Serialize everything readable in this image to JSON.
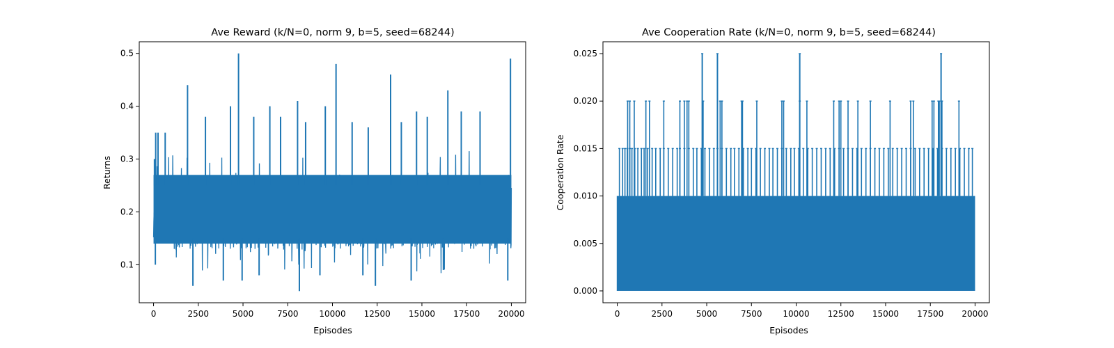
{
  "chart_data": [
    {
      "type": "line",
      "title": "Ave Reward (k/N=0, norm 9, b=5, seed=68244)",
      "xlabel": "Episodes",
      "ylabel": "Returns",
      "xlim": [
        -800,
        20800
      ],
      "ylim": [
        0.028,
        0.522
      ],
      "xticks": [
        0,
        2500,
        5000,
        7500,
        10000,
        12500,
        15000,
        17500,
        20000
      ],
      "yticks": [
        0.1,
        0.2,
        0.3,
        0.4,
        0.5
      ],
      "ytick_labels": [
        "0.1",
        "0.2",
        "0.3",
        "0.4",
        "0.5"
      ],
      "series_color": "#1f77b4",
      "band": {
        "x_start": 0,
        "x_end": 20000,
        "typical_low": 0.13,
        "typical_high": 0.27
      },
      "spikes": [
        {
          "x": 50,
          "y": 0.3
        },
        {
          "x": 120,
          "y": 0.35
        },
        {
          "x": 250,
          "y": 0.35
        },
        {
          "x": 650,
          "y": 0.35
        },
        {
          "x": 1900,
          "y": 0.44
        },
        {
          "x": 2900,
          "y": 0.38
        },
        {
          "x": 4300,
          "y": 0.4
        },
        {
          "x": 4750,
          "y": 0.5
        },
        {
          "x": 5600,
          "y": 0.38
        },
        {
          "x": 6500,
          "y": 0.4
        },
        {
          "x": 7100,
          "y": 0.38
        },
        {
          "x": 8050,
          "y": 0.41
        },
        {
          "x": 8500,
          "y": 0.37
        },
        {
          "x": 9600,
          "y": 0.4
        },
        {
          "x": 10200,
          "y": 0.48
        },
        {
          "x": 11100,
          "y": 0.37
        },
        {
          "x": 12000,
          "y": 0.36
        },
        {
          "x": 13250,
          "y": 0.46
        },
        {
          "x": 13850,
          "y": 0.37
        },
        {
          "x": 14700,
          "y": 0.39
        },
        {
          "x": 15300,
          "y": 0.38
        },
        {
          "x": 16450,
          "y": 0.43
        },
        {
          "x": 17200,
          "y": 0.39
        },
        {
          "x": 18250,
          "y": 0.39
        },
        {
          "x": 19950,
          "y": 0.49
        }
      ],
      "dips": [
        {
          "x": 100,
          "y": 0.1
        },
        {
          "x": 2200,
          "y": 0.06
        },
        {
          "x": 3900,
          "y": 0.07
        },
        {
          "x": 4950,
          "y": 0.07
        },
        {
          "x": 5900,
          "y": 0.08
        },
        {
          "x": 8150,
          "y": 0.05
        },
        {
          "x": 9300,
          "y": 0.08
        },
        {
          "x": 11700,
          "y": 0.08
        },
        {
          "x": 12400,
          "y": 0.06
        },
        {
          "x": 14400,
          "y": 0.07
        },
        {
          "x": 16200,
          "y": 0.09
        },
        {
          "x": 19800,
          "y": 0.07
        }
      ]
    },
    {
      "type": "line",
      "title": "Ave Cooperation Rate (k/N=0, norm 9, b=5, seed=68244)",
      "xlabel": "Episodes",
      "ylabel": "Cooperation Rate",
      "xlim": [
        -800,
        20800
      ],
      "ylim": [
        -0.00125,
        0.02625
      ],
      "xticks": [
        0,
        2500,
        5000,
        7500,
        10000,
        12500,
        15000,
        17500,
        20000
      ],
      "yticks": [
        0.0,
        0.005,
        0.01,
        0.015,
        0.02,
        0.025
      ],
      "ytick_labels": [
        "0.000",
        "0.005",
        "0.010",
        "0.015",
        "0.020",
        "0.025"
      ],
      "series_color": "#1f77b4",
      "band": {
        "x_start": 0,
        "x_end": 20000,
        "low": 0.0,
        "high": 0.01
      },
      "level_015_x": [
        120,
        300,
        430,
        560,
        700,
        820,
        980,
        1150,
        1350,
        1500,
        1700,
        1950,
        2150,
        2400,
        2600,
        2850,
        3100,
        3350,
        3500,
        3750,
        4000,
        4250,
        4450,
        4700,
        4900,
        5150,
        5400,
        5600,
        5850,
        6100,
        6350,
        6550,
        6800,
        7050,
        7300,
        7500,
        7750,
        8000,
        8250,
        8500,
        8700,
        8950,
        9200,
        9450,
        9700,
        9900,
        10150,
        10400,
        10650,
        10900,
        11150,
        11400,
        11650,
        11900,
        12150,
        12400,
        12650,
        12900,
        13150,
        13400,
        13650,
        13900,
        14150,
        14400,
        14650,
        14900,
        15150,
        15400,
        15650,
        15900,
        16150,
        16400,
        16650,
        16900,
        17150,
        17400,
        17650,
        17900,
        18150,
        18400,
        18650,
        18900,
        19150,
        19400,
        19650,
        19850
      ],
      "level_020_x": [
        580,
        700,
        950,
        1600,
        1800,
        2600,
        3500,
        3750,
        3900,
        4000,
        4800,
        5750,
        5850,
        6950,
        7000,
        7800,
        9200,
        9300,
        10200,
        10600,
        12100,
        12400,
        12500,
        12900,
        13450,
        14150,
        15250,
        16400,
        16550,
        17600,
        17700,
        17950,
        18000,
        18150,
        19100
      ],
      "level_025_x": [
        4750,
        5600,
        10200,
        18100
      ]
    }
  ]
}
